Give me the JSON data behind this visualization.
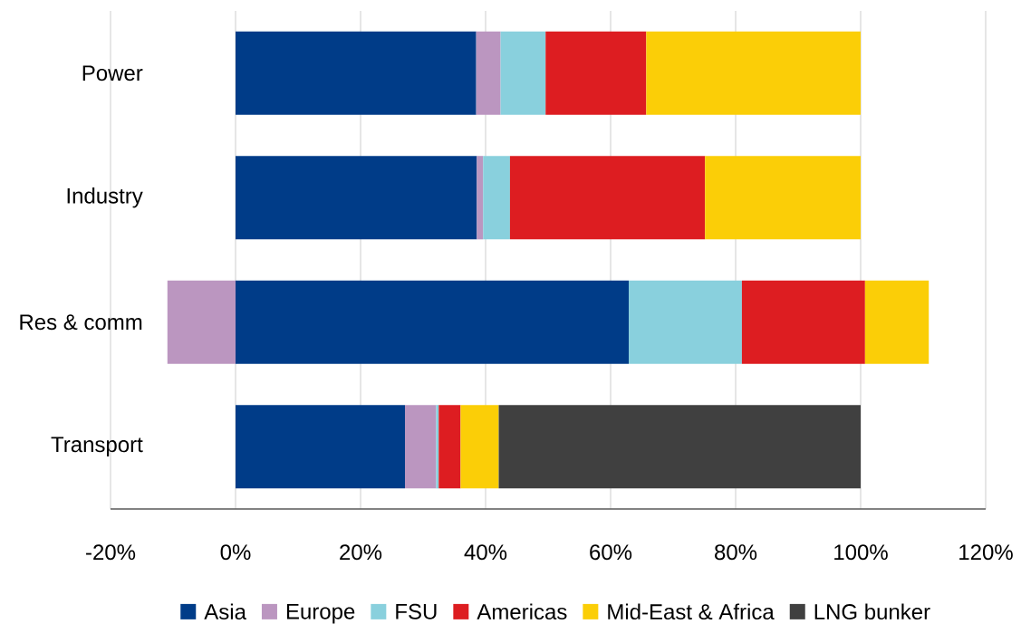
{
  "chart_data": {
    "type": "bar",
    "orientation": "horizontal",
    "stacked": true,
    "categories": [
      "Power",
      "Industry",
      "Res & comm",
      "Transport"
    ],
    "series": [
      {
        "name": "Asia",
        "color": "#003c88",
        "values": [
          38.5,
          38.6,
          62.9,
          27.1
        ]
      },
      {
        "name": "Europe",
        "color": "#bb96c0",
        "values": [
          3.9,
          1.0,
          -10.9,
          5.0
        ]
      },
      {
        "name": "FSU",
        "color": "#89d0dd",
        "values": [
          7.2,
          4.3,
          18.1,
          0.4
        ]
      },
      {
        "name": "Americas",
        "color": "#dd1d21",
        "values": [
          16.1,
          31.2,
          19.7,
          3.5
        ]
      },
      {
        "name": "Mid-East & Africa",
        "color": "#fbce07",
        "values": [
          34.3,
          24.9,
          10.2,
          6.1
        ]
      },
      {
        "name": "LNG bunker",
        "color": "#404040",
        "values": [
          null,
          null,
          null,
          57.9
        ]
      }
    ],
    "xlim": [
      -20,
      120
    ],
    "xticks": [
      {
        "value": -20,
        "label": "-20%"
      },
      {
        "value": 0,
        "label": "0%"
      },
      {
        "value": 20,
        "label": "20%"
      },
      {
        "value": 40,
        "label": "40%"
      },
      {
        "value": 60,
        "label": "60%"
      },
      {
        "value": 80,
        "label": "80%"
      },
      {
        "value": 100,
        "label": "100%"
      },
      {
        "value": 120,
        "label": "120%"
      }
    ],
    "grid": "x",
    "legend": "bottom"
  }
}
